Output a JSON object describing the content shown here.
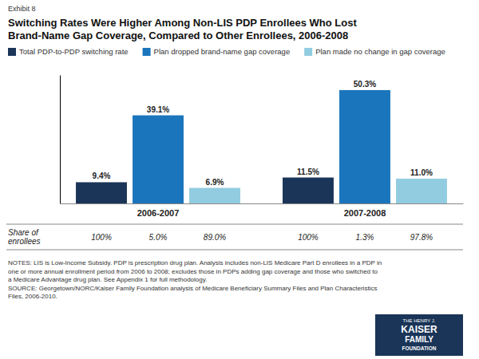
{
  "chart_data": {
    "type": "bar",
    "title": "Switching Rates Were Higher Among Non-LIS PDP Enrollees Who Lost\nBrand-Name Gap Coverage, Compared to Other Enrollees, 2006-2008",
    "annotations": [
      "Exhibit 8",
      "NOTES: LIS is Low-Income Subsidy. PDP is prescription drug plan. Analysis includes non-LIS Medicare Part D enrollees in a PDP in\none or more annual enrollment period from 2006 to 2008; excludes those in PDPs adding gap coverage and those who switched to\na Medicare Advantage drug plan. See Appendix 1 for full methodology.",
      "SOURCE: Georgetown/NORC/Kaiser Family Foundation analysis of Medicare Beneficiary Summary Files and Plan Characteristics\nFiles, 2006-2010.",
      "THE HENRY J.\nKAISER\nFAMILY\nFOUNDATION"
    ],
    "categories": [
      "2006-2007",
      "2007-2008"
    ],
    "series": [
      {
        "name": "Total PDP-to-PDP switching rate",
        "color": "#1a3558",
        "values": [
          9.4,
          11.5
        ],
        "value_labels": [
          "9.4%",
          "11.5%"
        ],
        "share_labels": [
          "100%",
          "100%"
        ]
      },
      {
        "name": "Plan dropped brand-name gap coverage",
        "color": "#1b75bc",
        "values": [
          39.1,
          50.3
        ],
        "value_labels": [
          "39.1%",
          "50.3%"
        ],
        "share_labels": [
          "5.0%",
          "1.3%"
        ]
      },
      {
        "name": "Plan made no change in gap coverage",
        "color": "#92cce0",
        "values": [
          6.9,
          11.0
        ],
        "value_labels": [
          "6.9%",
          "11.0%"
        ],
        "share_labels": [
          "89.0%",
          "97.8%"
        ]
      }
    ],
    "share_label": "Share of\nenrollees",
    "ylim": [
      0,
      57
    ],
    "grid": false,
    "data_labels": true,
    "tick_labels": "x",
    "legend": "upper left"
  }
}
